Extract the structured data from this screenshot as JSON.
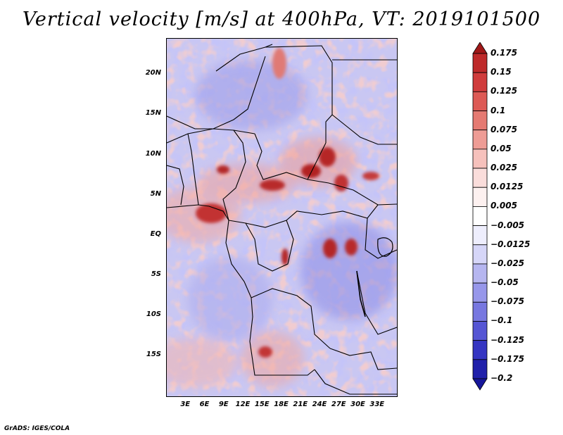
{
  "title": "Vertical velocity [m/s] at 400hPa, VT: 2019101500",
  "footer": "GrADS: IGES/COLA",
  "map": {
    "projection": "lat-lon",
    "lon_range": [
      0,
      36
    ],
    "lat_range": [
      -20,
      24.5
    ],
    "lat_labels": [
      {
        "lat": 20,
        "text": "20N"
      },
      {
        "lat": 15,
        "text": "15N"
      },
      {
        "lat": 10,
        "text": "10N"
      },
      {
        "lat": 5,
        "text": "5N"
      },
      {
        "lat": 0,
        "text": "EQ"
      },
      {
        "lat": -5,
        "text": "5S"
      },
      {
        "lat": -10,
        "text": "10S"
      },
      {
        "lat": -15,
        "text": "15S"
      }
    ],
    "lon_labels": [
      {
        "lon": 3,
        "text": "3E"
      },
      {
        "lon": 6,
        "text": "6E"
      },
      {
        "lon": 9,
        "text": "9E"
      },
      {
        "lon": 12,
        "text": "12E"
      },
      {
        "lon": 15,
        "text": "15E"
      },
      {
        "lon": 18,
        "text": "18E"
      },
      {
        "lon": 21,
        "text": "21E"
      },
      {
        "lon": 24,
        "text": "24E"
      },
      {
        "lon": 27,
        "text": "27E"
      },
      {
        "lon": 30,
        "text": "30E"
      },
      {
        "lon": 33,
        "text": "33E"
      }
    ]
  },
  "colorbar": {
    "labels": [
      "0.175",
      "0.15",
      "0.125",
      "0.1",
      "0.075",
      "0.05",
      "0.025",
      "0.0125",
      "0.005",
      "−0.005",
      "−0.0125",
      "−0.025",
      "−0.05",
      "−0.075",
      "−0.1",
      "−0.125",
      "−0.175",
      "−0.2"
    ],
    "colors": [
      "#a01818",
      "#be2a2a",
      "#d03c3c",
      "#dd5a55",
      "#e57a72",
      "#ee9c95",
      "#f6c1bc",
      "#fadddb",
      "#fdf1f0",
      "#ffffff",
      "#eeeefd",
      "#d6d6f8",
      "#b6b6f0",
      "#9797ea",
      "#7777e0",
      "#5555d4",
      "#3535c2",
      "#2020aa",
      "#16169a"
    ]
  }
}
